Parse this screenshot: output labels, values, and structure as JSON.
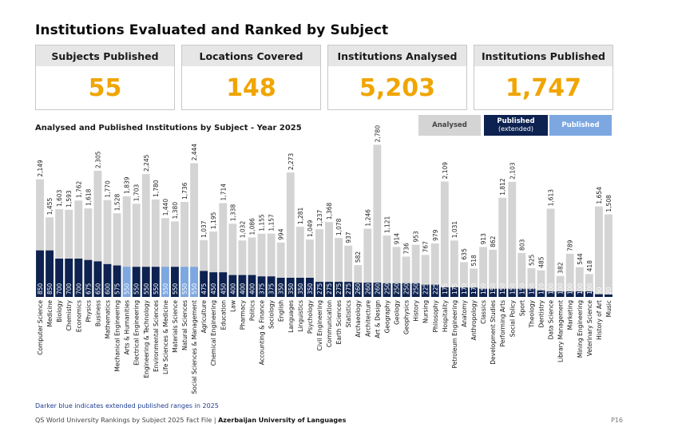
{
  "title": "Institutions Evaluated and Ranked by Subject",
  "stats": [
    {
      "label": "Subjects Published",
      "value": "55"
    },
    {
      "label": "Locations Covered",
      "value": "148"
    },
    {
      "label": "Institutions Analysed",
      "value": "5,203"
    },
    {
      "label": "Institutions Published",
      "value": "1,747"
    }
  ],
  "subtitle": "Analysed and Published Institutions by Subject - Year 2025",
  "legend": {
    "analysed": "Analysed",
    "extended": "Published",
    "extended_note": "(extended)",
    "published": "Published"
  },
  "colors": {
    "analysed": "#d4d4d4",
    "extended": "#0d2250",
    "published": "#7da7e0",
    "accent": "#f0a500"
  },
  "note": "Darker blue indicates extended published ranges in 2025",
  "footer": {
    "prefix": "QS World University Rankings by Subject 2025 Fact File |",
    "institution": "Azerbaijan University of Languages",
    "page": "P16"
  },
  "chart_data": {
    "type": "bar",
    "categories": [
      "Computer Science",
      "Medicine",
      "Biology",
      "Chemistry",
      "Economics",
      "Physics",
      "Business",
      "Mathematics",
      "Mechanical Engineering",
      "Arts & Humanities",
      "Electrical Engineering",
      "Engineering & Technology",
      "Environmental Sciences",
      "Life Sciences & Medicine",
      "Materials Science",
      "Natural Sciences",
      "Social Sciences & Management",
      "Agriculture",
      "Chemical Engineering",
      "Education",
      "Law",
      "Pharmacy",
      "Politics",
      "Accounting & Finance",
      "Sociology",
      "English",
      "Languages",
      "Linguistics",
      "Psychology",
      "Civil Engineering",
      "Communication",
      "Earth Sciences",
      "Statistics",
      "Archaeology",
      "Architecture",
      "Art & Design",
      "Geography",
      "Geology",
      "Geophysics",
      "History",
      "Nursing",
      "Philosophy",
      "Hospitality",
      "Petroleum Engineering",
      "Anatomy",
      "Anthropology",
      "Classics",
      "Development Studies",
      "Performing Arts",
      "Social Policy",
      "Sport",
      "Theology",
      "Dentistry",
      "Data Science",
      "Library Management",
      "Marketing",
      "Mining Engineering",
      "Veterinary Science",
      "History of Art",
      "Music"
    ],
    "series": [
      {
        "name": "Analysed",
        "values": [
          2149,
          1455,
          1603,
          1593,
          1762,
          1618,
          2305,
          1770,
          1528,
          1839,
          1703,
          2245,
          1780,
          1440,
          1380,
          1736,
          2444,
          1037,
          1195,
          1714,
          1338,
          1032,
          1086,
          1155,
          1157,
          994,
          2273,
          1281,
          1049,
          1237,
          1368,
          1078,
          937,
          582,
          1246,
          2780,
          1121,
          914,
          736,
          953,
          767,
          979,
          2109,
          1031,
          635,
          518,
          913,
          862,
          1812,
          2103,
          803,
          525,
          485,
          1613,
          382,
          789,
          544,
          418,
          1654,
          1508
        ]
      },
      {
        "name": "Published",
        "values": [
          850,
          850,
          700,
          700,
          700,
          675,
          650,
          600,
          575,
          550,
          550,
          550,
          550,
          550,
          550,
          550,
          550,
          475,
          450,
          450,
          400,
          400,
          400,
          375,
          375,
          350,
          350,
          350,
          350,
          275,
          275,
          275,
          275,
          260,
          260,
          260,
          250,
          250,
          250,
          250,
          225,
          225,
          175,
          175,
          170,
          170,
          150,
          150,
          150,
          150,
          150,
          150,
          120,
          100,
          100,
          100,
          100,
          100,
          50,
          20
        ]
      }
    ],
    "published_style": [
      "extended",
      "extended",
      "extended",
      "extended",
      "extended",
      "extended",
      "extended",
      "extended",
      "extended",
      "standard",
      "extended",
      "extended",
      "extended",
      "standard",
      "extended",
      "standard",
      "standard",
      "extended",
      "extended",
      "extended",
      "extended",
      "extended",
      "extended",
      "extended",
      "extended",
      "extended",
      "extended",
      "extended",
      "extended",
      "extended",
      "extended",
      "extended",
      "extended",
      "extended",
      "extended",
      "extended",
      "extended",
      "extended",
      "extended",
      "extended",
      "extended",
      "extended",
      "extended",
      "extended",
      "extended",
      "extended",
      "extended",
      "extended",
      "extended",
      "extended",
      "extended",
      "extended",
      "extended",
      "extended",
      "extended",
      "extended",
      "extended",
      "extended",
      "extended",
      "extended"
    ],
    "ylim": [
      0,
      2800
    ],
    "grid": false
  }
}
